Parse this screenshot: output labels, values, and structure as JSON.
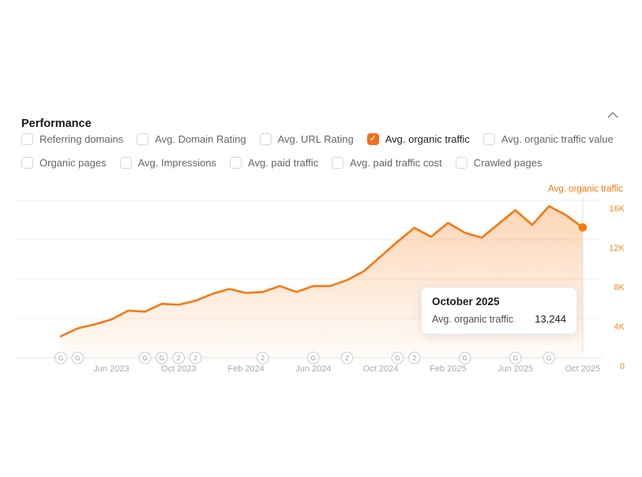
{
  "header": {
    "title": "Performance"
  },
  "metrics": {
    "rows": [
      [
        {
          "label": "Referring domains",
          "checked": false
        },
        {
          "label": "Avg. Domain Rating",
          "checked": false
        },
        {
          "label": "Avg. URL Rating",
          "checked": false
        },
        {
          "label": "Avg. organic traffic",
          "checked": true
        },
        {
          "label": "Avg. organic traffic value",
          "checked": false
        }
      ],
      [
        {
          "label": "Organic pages",
          "checked": false
        },
        {
          "label": "Avg. Impressions",
          "checked": false
        },
        {
          "label": "Avg. paid traffic",
          "checked": false
        },
        {
          "label": "Avg. paid traffic cost",
          "checked": false
        },
        {
          "label": "Crawled pages",
          "checked": false
        }
      ]
    ]
  },
  "chart_data": {
    "type": "line",
    "title": "Avg. organic traffic",
    "series_label": "Avg. organic traffic",
    "x_categories": [
      "Mar 2023",
      "Apr 2023",
      "May 2023",
      "Jun 2023",
      "Jul 2023",
      "Aug 2023",
      "Sep 2023",
      "Oct 2023",
      "Nov 2023",
      "Dec 2023",
      "Jan 2024",
      "Feb 2024",
      "Mar 2024",
      "Apr 2024",
      "May 2024",
      "Jun 2024",
      "Jul 2024",
      "Aug 2024",
      "Sep 2024",
      "Oct 2024",
      "Nov 2024",
      "Dec 2024",
      "Jan 2025",
      "Feb 2025",
      "Mar 2025",
      "Apr 2025",
      "May 2025",
      "Jun 2025",
      "Jul 2025",
      "Aug 2025",
      "Sep 2025",
      "Oct 2025"
    ],
    "values": [
      2200,
      3000,
      3400,
      3900,
      4800,
      4700,
      5500,
      5400,
      5800,
      6500,
      7000,
      6600,
      6700,
      7300,
      6700,
      7300,
      7300,
      7900,
      8800,
      10300,
      11800,
      13200,
      12300,
      13700,
      12700,
      12200,
      13600,
      15000,
      13500,
      15400,
      14500,
      13244
    ],
    "x_tick_labels": [
      "Jun 2023",
      "Oct 2023",
      "Feb 2024",
      "Jun 2024",
      "Oct 2024",
      "Feb 2025",
      "Jun 2025",
      "Oct 2025"
    ],
    "y_tick_labels": [
      "16K",
      "12K",
      "8K",
      "4K",
      "0"
    ],
    "y_ticks": [
      16000,
      12000,
      8000,
      4000,
      0
    ],
    "ylim": [
      0,
      18200
    ],
    "grid": "horizontal",
    "legend_position": "top-right",
    "axis_badges": [
      {
        "category": "Mar 2023",
        "label": "G"
      },
      {
        "category": "Apr 2023",
        "label": "G"
      },
      {
        "category": "Aug 2023",
        "label": "G"
      },
      {
        "category": "Sep 2023",
        "label": "G"
      },
      {
        "category": "Oct 2023",
        "label": "2"
      },
      {
        "category": "Nov 2023",
        "label": "2"
      },
      {
        "category": "Mar 2024",
        "label": "2"
      },
      {
        "category": "Jun 2024",
        "label": "G"
      },
      {
        "category": "Aug 2024",
        "label": "2"
      },
      {
        "category": "Nov 2024",
        "label": "G"
      },
      {
        "category": "Dec 2024",
        "label": "2"
      },
      {
        "category": "Mar 2025",
        "label": "G"
      },
      {
        "category": "Jun 2025",
        "label": "G"
      },
      {
        "category": "Aug 2025",
        "label": "G"
      }
    ],
    "hover_point": {
      "category": "October 2025",
      "value": 13244
    }
  },
  "tooltip": {
    "title": "October 2025",
    "label": "Avg. organic traffic",
    "value": "13,244"
  },
  "colors": {
    "accent": "#f7770f",
    "y_label_orange": "#f98a20",
    "checkbox_checked": "#f76b15",
    "gridline": "#ececee",
    "axis_line": "#e3e3e7",
    "hover_line": "#dcdcdf"
  }
}
